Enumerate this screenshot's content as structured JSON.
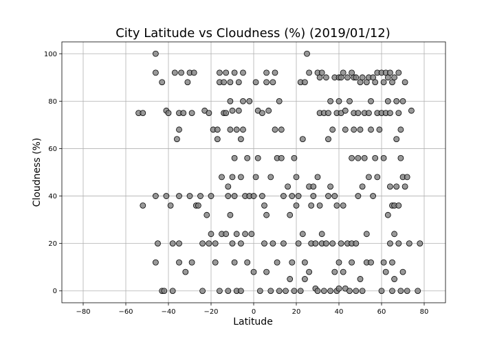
{
  "chart_data": {
    "type": "scatter",
    "title": "City Latitude vs Cloudness (%) (2019/01/12)",
    "xlabel": "Latitude",
    "ylabel": "Cloudness (%)",
    "xlim": [
      -90,
      90
    ],
    "ylim": [
      -5,
      105
    ],
    "xticks": [
      -80,
      -60,
      -40,
      -20,
      0,
      20,
      40,
      60,
      80
    ],
    "yticks": [
      0,
      20,
      40,
      60,
      80,
      100
    ],
    "grid": true,
    "marker_fill": "#808080",
    "marker_edge": "#000000",
    "points": [
      [
        -54,
        75
      ],
      [
        -52,
        75
      ],
      [
        -52,
        36
      ],
      [
        -46,
        92
      ],
      [
        -46,
        100
      ],
      [
        -46,
        40
      ],
      [
        -46,
        12
      ],
      [
        -45,
        20
      ],
      [
        -43,
        88
      ],
      [
        -43,
        0
      ],
      [
        -42,
        0
      ],
      [
        -41,
        76
      ],
      [
        -41,
        40
      ],
      [
        -40,
        75
      ],
      [
        -39,
        36
      ],
      [
        -38,
        20
      ],
      [
        -38,
        0
      ],
      [
        -37,
        92
      ],
      [
        -36,
        64
      ],
      [
        -35,
        68
      ],
      [
        -35,
        75
      ],
      [
        -35,
        40
      ],
      [
        -35,
        20
      ],
      [
        -35,
        12
      ],
      [
        -34,
        92
      ],
      [
        -33,
        75
      ],
      [
        -32,
        8
      ],
      [
        -31,
        88
      ],
      [
        -30,
        92
      ],
      [
        -30,
        40
      ],
      [
        -29,
        12
      ],
      [
        -29,
        75
      ],
      [
        -28,
        92
      ],
      [
        -27,
        36
      ],
      [
        -26,
        36
      ],
      [
        -25,
        40
      ],
      [
        -24,
        20
      ],
      [
        -24,
        0
      ],
      [
        -23,
        76
      ],
      [
        -22,
        32
      ],
      [
        -21,
        75
      ],
      [
        -21,
        20
      ],
      [
        -20,
        40
      ],
      [
        -20,
        24
      ],
      [
        -19,
        68
      ],
      [
        -18,
        20
      ],
      [
        -18,
        12
      ],
      [
        -17,
        64
      ],
      [
        -17,
        68
      ],
      [
        -16,
        92
      ],
      [
        -16,
        88
      ],
      [
        -16,
        0
      ],
      [
        -15,
        48
      ],
      [
        -15,
        24
      ],
      [
        -14,
        88
      ],
      [
        -14,
        75
      ],
      [
        -13,
        92
      ],
      [
        -13,
        24
      ],
      [
        -13,
        75
      ],
      [
        -12,
        40
      ],
      [
        -12,
        44
      ],
      [
        -12,
        0
      ],
      [
        -11,
        88
      ],
      [
        -11,
        80
      ],
      [
        -11,
        68
      ],
      [
        -11,
        32
      ],
      [
        -10,
        76
      ],
      [
        -10,
        48
      ],
      [
        -10,
        20
      ],
      [
        -9,
        92
      ],
      [
        -9,
        56
      ],
      [
        -9,
        40
      ],
      [
        -9,
        12
      ],
      [
        -8,
        68
      ],
      [
        -8,
        24
      ],
      [
        -8,
        0
      ],
      [
        -7,
        76
      ],
      [
        -7,
        88
      ],
      [
        -6,
        64
      ],
      [
        -6,
        48
      ],
      [
        -6,
        20
      ],
      [
        -6,
        0
      ],
      [
        -5,
        80
      ],
      [
        -5,
        92
      ],
      [
        -5,
        68
      ],
      [
        -4,
        40
      ],
      [
        -4,
        24
      ],
      [
        -3,
        12
      ],
      [
        -3,
        56
      ],
      [
        -2,
        40
      ],
      [
        -2,
        80
      ],
      [
        -1,
        24
      ],
      [
        0,
        8
      ],
      [
        0,
        40
      ],
      [
        1,
        48
      ],
      [
        1,
        88
      ],
      [
        2,
        56
      ],
      [
        2,
        76
      ],
      [
        3,
        0
      ],
      [
        4,
        40
      ],
      [
        4,
        75
      ],
      [
        5,
        36
      ],
      [
        5,
        20
      ],
      [
        6,
        32
      ],
      [
        6,
        92
      ],
      [
        6,
        88
      ],
      [
        6,
        8
      ],
      [
        7,
        76
      ],
      [
        8,
        48
      ],
      [
        8,
        0
      ],
      [
        9,
        20
      ],
      [
        9,
        88
      ],
      [
        10,
        68
      ],
      [
        10,
        92
      ],
      [
        11,
        56
      ],
      [
        11,
        12
      ],
      [
        12,
        80
      ],
      [
        12,
        0
      ],
      [
        13,
        68
      ],
      [
        13,
        56
      ],
      [
        14,
        20
      ],
      [
        14,
        40
      ],
      [
        15,
        0
      ],
      [
        16,
        44
      ],
      [
        17,
        32
      ],
      [
        17,
        5
      ],
      [
        18,
        40
      ],
      [
        18,
        12
      ],
      [
        19,
        56
      ],
      [
        19,
        0
      ],
      [
        20,
        36
      ],
      [
        20,
        48
      ],
      [
        21,
        40
      ],
      [
        21,
        20
      ],
      [
        22,
        88
      ],
      [
        22,
        0
      ],
      [
        23,
        64
      ],
      [
        23,
        24
      ],
      [
        24,
        88
      ],
      [
        24,
        5
      ],
      [
        24,
        12
      ],
      [
        25,
        100
      ],
      [
        26,
        92
      ],
      [
        26,
        44
      ],
      [
        26,
        8
      ],
      [
        27,
        36
      ],
      [
        27,
        20
      ],
      [
        28,
        40
      ],
      [
        28,
        44
      ],
      [
        29,
        20
      ],
      [
        29,
        1
      ],
      [
        30,
        92
      ],
      [
        30,
        48
      ],
      [
        30,
        0
      ],
      [
        31,
        90
      ],
      [
        31,
        75
      ],
      [
        31,
        36
      ],
      [
        32,
        92
      ],
      [
        32,
        24
      ],
      [
        32,
        20
      ],
      [
        33,
        75
      ],
      [
        33,
        0
      ],
      [
        34,
        90
      ],
      [
        34,
        20
      ],
      [
        35,
        75
      ],
      [
        35,
        40
      ],
      [
        35,
        64
      ],
      [
        36,
        80
      ],
      [
        36,
        44
      ],
      [
        36,
        0
      ],
      [
        37,
        68
      ],
      [
        37,
        20
      ],
      [
        38,
        90
      ],
      [
        38,
        40
      ],
      [
        38,
        8
      ],
      [
        39,
        75
      ],
      [
        39,
        36
      ],
      [
        39,
        0
      ],
      [
        40,
        90
      ],
      [
        40,
        80
      ],
      [
        40,
        12
      ],
      [
        40,
        1
      ],
      [
        41,
        90
      ],
      [
        41,
        75
      ],
      [
        41,
        20
      ],
      [
        42,
        92
      ],
      [
        42,
        36
      ],
      [
        42,
        8
      ],
      [
        43,
        76
      ],
      [
        43,
        68
      ],
      [
        43,
        1
      ],
      [
        44,
        90
      ],
      [
        44,
        20
      ],
      [
        45,
        80
      ],
      [
        45,
        0
      ],
      [
        46,
        92
      ],
      [
        46,
        56
      ],
      [
        46,
        20
      ],
      [
        46,
        12
      ],
      [
        47,
        90
      ],
      [
        47,
        75
      ],
      [
        47,
        68
      ],
      [
        48,
        90
      ],
      [
        48,
        20
      ],
      [
        48,
        0
      ],
      [
        49,
        75
      ],
      [
        49,
        56
      ],
      [
        49,
        40
      ],
      [
        50,
        88
      ],
      [
        50,
        68
      ],
      [
        50,
        5
      ],
      [
        51,
        90
      ],
      [
        51,
        44
      ],
      [
        51,
        0
      ],
      [
        52,
        75
      ],
      [
        52,
        56
      ],
      [
        53,
        88
      ],
      [
        53,
        24
      ],
      [
        53,
        12
      ],
      [
        54,
        90
      ],
      [
        54,
        75
      ],
      [
        54,
        48
      ],
      [
        55,
        80
      ],
      [
        55,
        68
      ],
      [
        55,
        12
      ],
      [
        56,
        90
      ],
      [
        56,
        40
      ],
      [
        57,
        88
      ],
      [
        57,
        56
      ],
      [
        58,
        92
      ],
      [
        58,
        75
      ],
      [
        58,
        48
      ],
      [
        59,
        68
      ],
      [
        60,
        92
      ],
      [
        60,
        75
      ],
      [
        60,
        0
      ],
      [
        61,
        88
      ],
      [
        61,
        56
      ],
      [
        61,
        12
      ],
      [
        62,
        92
      ],
      [
        62,
        75
      ],
      [
        62,
        8
      ],
      [
        63,
        90
      ],
      [
        63,
        80
      ],
      [
        63,
        32
      ],
      [
        64,
        92
      ],
      [
        64,
        75
      ],
      [
        64,
        44
      ],
      [
        64,
        20
      ],
      [
        65,
        88
      ],
      [
        65,
        36
      ],
      [
        65,
        12
      ],
      [
        65,
        0
      ],
      [
        66,
        90
      ],
      [
        66,
        36
      ],
      [
        66,
        24
      ],
      [
        66,
        5
      ],
      [
        67,
        80
      ],
      [
        67,
        64
      ],
      [
        67,
        44
      ],
      [
        68,
        92
      ],
      [
        68,
        75
      ],
      [
        68,
        36
      ],
      [
        68,
        20
      ],
      [
        69,
        56
      ],
      [
        69,
        68
      ],
      [
        69,
        0
      ],
      [
        70,
        80
      ],
      [
        70,
        48
      ],
      [
        70,
        8
      ],
      [
        71,
        88
      ],
      [
        71,
        44
      ],
      [
        72,
        48
      ],
      [
        72,
        0
      ],
      [
        73,
        20
      ],
      [
        74,
        76
      ],
      [
        77,
        0
      ],
      [
        78,
        20
      ]
    ]
  }
}
